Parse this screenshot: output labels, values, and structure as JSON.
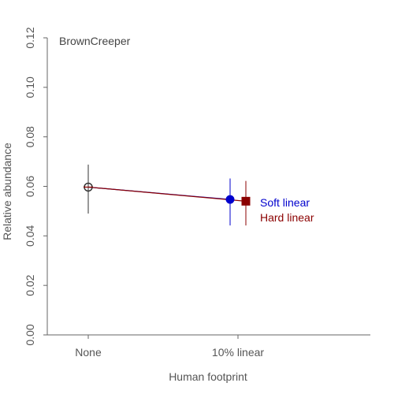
{
  "chart_data": {
    "type": "scatter",
    "title": "BrownCreeper",
    "xlabel": "Human footprint",
    "ylabel": "Relative abundance",
    "ylim": [
      0,
      0.12
    ],
    "yticks": [
      "0.00",
      "0.02",
      "0.04",
      "0.06",
      "0.08",
      "0.10",
      "0.12"
    ],
    "categories": [
      "None",
      "10% linear"
    ],
    "grid": false,
    "baseline": {
      "category": "None",
      "y": 0.0597,
      "lower": 0.049,
      "upper": 0.0688
    },
    "series": [
      {
        "name": "Soft linear",
        "color": "#0000CD",
        "marker": "circle",
        "category": "10% linear",
        "y": 0.0547,
        "lower": 0.0442,
        "upper": 0.0632
      },
      {
        "name": "Hard linear",
        "color": "#8B0000",
        "marker": "square",
        "category": "10% linear",
        "y": 0.054,
        "lower": 0.0442,
        "upper": 0.0622
      }
    ],
    "legend_placement": "right"
  }
}
